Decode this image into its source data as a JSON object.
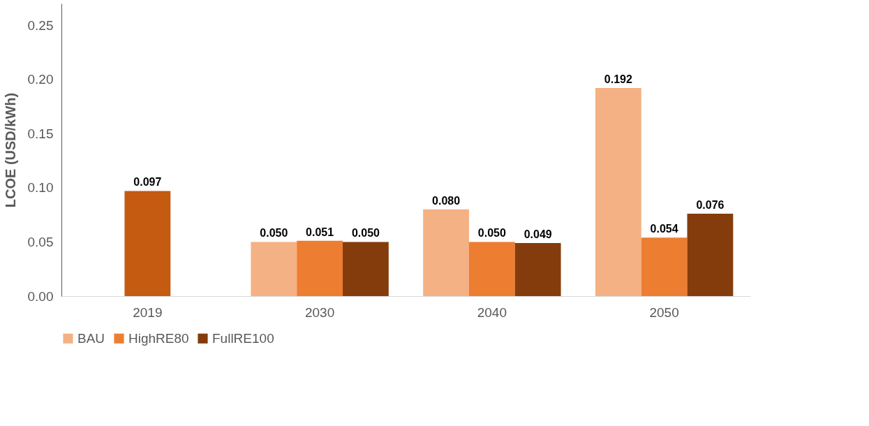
{
  "chart_data": {
    "type": "bar",
    "ylabel": "LCOE (USD/kWh)",
    "categories": [
      "2019",
      "2030",
      "2040",
      "2050"
    ],
    "series": [
      {
        "color": "#c55a11",
        "values": [
          0.097,
          null,
          null,
          null
        ],
        "value_labels": [
          "0.097",
          null,
          null,
          null
        ]
      },
      {
        "name": "BAU",
        "color": "#f4b183",
        "values": [
          null,
          0.05,
          0.08,
          0.192
        ],
        "value_labels": [
          null,
          "0.050",
          "0.080",
          "0.192"
        ]
      },
      {
        "name": "HighRE80",
        "color": "#ed7d31",
        "values": [
          null,
          0.051,
          0.05,
          0.054
        ],
        "value_labels": [
          null,
          "0.051",
          "0.050",
          "0.054"
        ]
      },
      {
        "name": "FullRE100",
        "color": "#843c0c",
        "values": [
          null,
          0.05,
          0.049,
          0.076
        ],
        "value_labels": [
          null,
          "0.050",
          "0.049",
          "0.076"
        ]
      }
    ],
    "ylim": [
      0,
      0.27
    ],
    "yticks": [
      {
        "value": 0,
        "label": "0.00"
      },
      {
        "value": 0.05,
        "label": "0.05"
      },
      {
        "value": 0.1,
        "label": "0.10"
      },
      {
        "value": 0.15,
        "label": "0.15"
      },
      {
        "value": 0.2,
        "label": "0.20"
      },
      {
        "value": 0.25,
        "label": "0.25"
      }
    ],
    "grid": false,
    "legend": "bottom"
  }
}
